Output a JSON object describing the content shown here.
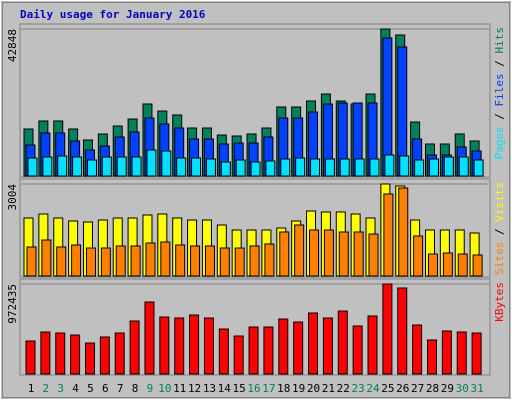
{
  "chart_data": [
    {
      "type": "bar",
      "title": "Daily usage for January 2016",
      "ylim": [
        0,
        42848
      ],
      "yticks": [
        42848
      ],
      "legend_separator": " / ",
      "series": [
        {
          "name": "Hits",
          "color": "#00805c",
          "values": [
            13700,
            16033,
            16033,
            13700,
            10494,
            12243,
            14575,
            16616,
            20988,
            18948,
            17782,
            13992,
            13992,
            11952,
            11660,
            12243,
            13992,
            20114,
            20114,
            21863,
            23903,
            21863,
            20988,
            23903,
            42848,
            41102,
            15741,
            9328,
            9328,
            12243,
            10203
          ]
        },
        {
          "name": "Files",
          "color": "#0040ff",
          "values": [
            9037,
            12535,
            12535,
            10203,
            7579,
            8745,
            11369,
            12826,
            16907,
            15158,
            13992,
            10786,
            10786,
            9328,
            9620,
            9620,
            11369,
            16907,
            16907,
            18656,
            20988,
            21280,
            21280,
            21280,
            40227,
            37604,
            10786,
            6122,
            6122,
            8454,
            7288
          ]
        },
        {
          "name": "Pages",
          "color": "#00e0ff",
          "values": [
            5247,
            5539,
            5830,
            5539,
            4664,
            5539,
            5539,
            5539,
            7579,
            7288,
            5247,
            5247,
            4956,
            4081,
            4664,
            4081,
            4373,
            4956,
            5247,
            4956,
            4956,
            4956,
            4956,
            4956,
            6122,
            5830,
            4664,
            4956,
            5539,
            5539,
            4664
          ]
        }
      ]
    },
    {
      "type": "bar",
      "ylim": [
        0,
        3004
      ],
      "yticks": [
        3004
      ],
      "legend_separator": " / ",
      "series": [
        {
          "name": "Visits",
          "color": "#ffff00",
          "values": [
            1894,
            2024,
            1894,
            1796,
            1763,
            1828,
            1894,
            1894,
            1992,
            2024,
            1894,
            1828,
            1828,
            1665,
            1502,
            1502,
            1502,
            1567,
            1796,
            2122,
            2090,
            2090,
            2024,
            1894,
            3004,
            2939,
            1828,
            1502,
            1502,
            1502,
            1404
          ]
        },
        {
          "name": "Sites",
          "color": "#ff8000",
          "values": [
            947,
            1175,
            947,
            1012,
            914,
            914,
            980,
            980,
            1077,
            1110,
            1012,
            980,
            980,
            914,
            914,
            980,
            1045,
            1437,
            1665,
            1502,
            1502,
            1437,
            1437,
            1371,
            2677,
            2873,
            1306,
            718,
            751,
            718,
            686
          ]
        }
      ]
    },
    {
      "type": "bar",
      "ylim": [
        0,
        972435
      ],
      "yticks": [
        972435
      ],
      "categories": [
        "1",
        "2",
        "3",
        "4",
        "5",
        "6",
        "7",
        "8",
        "9",
        "10",
        "11",
        "12",
        "13",
        "14",
        "15",
        "16",
        "17",
        "18",
        "19",
        "20",
        "21",
        "22",
        "23",
        "24",
        "25",
        "26",
        "27",
        "28",
        "29",
        "30",
        "31"
      ],
      "category_colors": [
        "#000000",
        "#00805c",
        "#00805c",
        "#000000",
        "#000000",
        "#000000",
        "#000000",
        "#000000",
        "#00805c",
        "#00805c",
        "#000000",
        "#000000",
        "#000000",
        "#000000",
        "#000000",
        "#00805c",
        "#00805c",
        "#000000",
        "#000000",
        "#000000",
        "#000000",
        "#000000",
        "#00805c",
        "#00805c",
        "#000000",
        "#000000",
        "#000000",
        "#000000",
        "#000000",
        "#00805c",
        "#00805c"
      ],
      "series": [
        {
          "name": "KBytes",
          "color": "#ff0000",
          "values": [
            356565,
            453810,
            443005,
            421395,
            334955,
            399785,
            443005,
            572665,
            777960,
            615885,
            605080,
            637495,
            605080,
            486225,
            410590,
            507835,
            507835,
            594275,
            561860,
            659105,
            605080,
            680715,
            518640,
            626690,
            972435,
            929230,
            529445,
            367370,
            464615,
            453810,
            443005
          ]
        }
      ]
    }
  ]
}
